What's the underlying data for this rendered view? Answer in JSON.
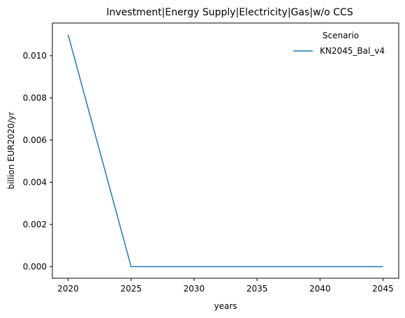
{
  "chart_data": {
    "type": "line",
    "title": "Investment|Energy Supply|Electricity|Gas|w/o CCS",
    "xlabel": "years",
    "ylabel": "billion EUR2020/yr",
    "x": [
      2020,
      2025,
      2030,
      2035,
      2040,
      2045
    ],
    "xticks": [
      "2020",
      "2025",
      "2030",
      "2035",
      "2040",
      "2045"
    ],
    "yticks": [
      "0.000",
      "0.002",
      "0.004",
      "0.006",
      "0.008",
      "0.010"
    ],
    "xlim": [
      2018.75,
      2046.25
    ],
    "ylim": [
      -0.00055,
      0.01155
    ],
    "grid": false,
    "legend": {
      "title": "Scenario",
      "placement": "top-right"
    },
    "series": [
      {
        "name": "KN2045_Bal_v4",
        "color": "#1f77b4",
        "values": [
          0.011,
          0.0,
          0.0,
          0.0,
          0.0,
          0.0
        ]
      }
    ]
  }
}
